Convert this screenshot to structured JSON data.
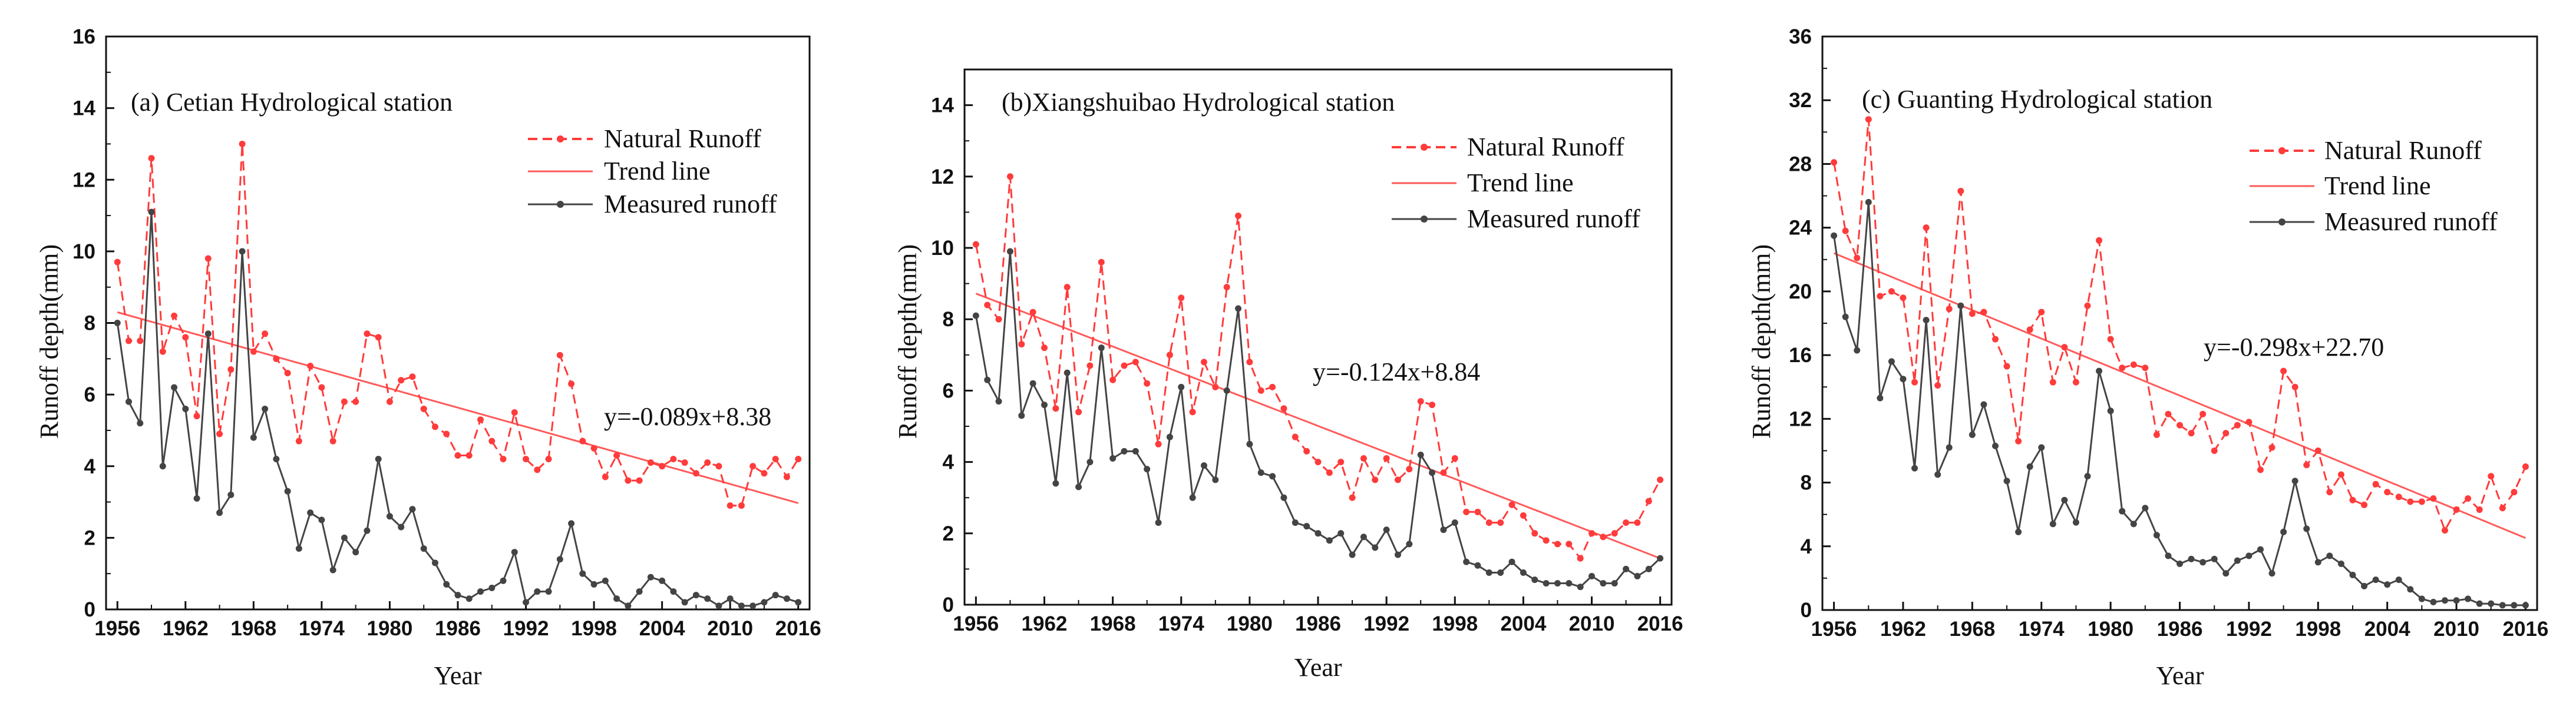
{
  "colors": {
    "natural": "#ff3b3b",
    "trend": "#ff5a5a",
    "measured": "#444444",
    "axis": "#111111"
  },
  "legend": {
    "natural": "Natural Runoff",
    "trend": "Trend line",
    "measured": "Measured runoff"
  },
  "chart_data": [
    {
      "type": "line",
      "title": "(a) Cetian Hydrological station",
      "xlabel": "Year",
      "ylabel": "Runoff depth(mm)",
      "xlim": [
        1955,
        2017
      ],
      "ylim": [
        0,
        16
      ],
      "xticks": [
        1956,
        1962,
        1968,
        1974,
        1980,
        1986,
        1992,
        1998,
        2004,
        2010,
        2016
      ],
      "xtick_labels": [
        "1956",
        "1962",
        "1968",
        "1974",
        "1980",
        "1986",
        "1992",
        "1998",
        "2004",
        "2010",
        "2016"
      ],
      "yticks": [
        0,
        2,
        4,
        6,
        8,
        10,
        12,
        14,
        16
      ],
      "ytick_labels": [
        "0",
        "2",
        "4",
        "6",
        "8",
        "10",
        "12",
        "14",
        "16"
      ],
      "equation": "y=-0.089x+8.38",
      "trend": {
        "x": [
          1956,
          2016
        ],
        "y": [
          8.3,
          2.97
        ]
      },
      "x": [
        1956,
        1957,
        1958,
        1959,
        1960,
        1961,
        1962,
        1963,
        1964,
        1965,
        1966,
        1967,
        1968,
        1969,
        1970,
        1971,
        1972,
        1973,
        1974,
        1975,
        1976,
        1977,
        1978,
        1979,
        1980,
        1981,
        1982,
        1983,
        1984,
        1985,
        1986,
        1987,
        1988,
        1989,
        1990,
        1991,
        1992,
        1993,
        1994,
        1995,
        1996,
        1997,
        1998,
        1999,
        2000,
        2001,
        2002,
        2003,
        2004,
        2005,
        2006,
        2007,
        2008,
        2009,
        2010,
        2011,
        2012,
        2013,
        2014,
        2015,
        2016
      ],
      "series": [
        {
          "name": "Natural Runoff",
          "values": [
            9.7,
            7.5,
            7.5,
            12.6,
            7.2,
            8.2,
            7.6,
            5.4,
            9.8,
            4.9,
            6.7,
            13.0,
            7.2,
            7.7,
            7.0,
            6.6,
            4.7,
            6.8,
            6.2,
            4.7,
            5.8,
            5.8,
            7.7,
            7.6,
            5.8,
            6.4,
            6.5,
            5.6,
            5.1,
            4.9,
            4.3,
            4.3,
            5.3,
            4.7,
            4.2,
            5.5,
            4.2,
            3.9,
            4.2,
            7.1,
            6.3,
            4.7,
            4.5,
            3.7,
            4.3,
            3.6,
            3.6,
            4.1,
            4.0,
            4.2,
            4.1,
            3.8,
            4.1,
            4.0,
            2.9,
            2.9,
            4.0,
            3.8,
            4.2,
            3.7,
            4.2
          ]
        },
        {
          "name": "Measured runoff",
          "values": [
            8.0,
            5.8,
            5.2,
            11.1,
            4.0,
            6.2,
            5.6,
            3.1,
            7.7,
            2.7,
            3.2,
            10.0,
            4.8,
            5.6,
            4.2,
            3.3,
            1.7,
            2.7,
            2.5,
            1.1,
            2.0,
            1.6,
            2.2,
            4.2,
            2.6,
            2.3,
            2.8,
            1.7,
            1.3,
            0.7,
            0.4,
            0.3,
            0.5,
            0.6,
            0.8,
            1.6,
            0.2,
            0.5,
            0.5,
            1.4,
            2.4,
            1.0,
            0.7,
            0.8,
            0.3,
            0.1,
            0.5,
            0.9,
            0.8,
            0.5,
            0.2,
            0.4,
            0.3,
            0.1,
            0.3,
            0.1,
            0.1,
            0.2,
            0.4,
            0.3,
            0.2
          ]
        }
      ]
    },
    {
      "type": "line",
      "title": "(b)Xiangshuibao Hydrological station",
      "xlabel": "Year",
      "ylabel": "Runoff depth(mm)",
      "xlim": [
        1955,
        2017
      ],
      "ylim": [
        0,
        15
      ],
      "xticks": [
        1956,
        1962,
        1968,
        1974,
        1980,
        1986,
        1992,
        1998,
        2004,
        2010,
        2016
      ],
      "xtick_labels": [
        "1956",
        "1962",
        "1968",
        "1974",
        "1980",
        "1986",
        "1992",
        "1998",
        "2004",
        "2010",
        "2016"
      ],
      "yticks": [
        0,
        2,
        4,
        6,
        8,
        10,
        12,
        14
      ],
      "ytick_labels": [
        "0",
        "2",
        "4",
        "6",
        "8",
        "10",
        "12",
        "14"
      ],
      "equation": "y=-0.124x+8.84",
      "trend": {
        "x": [
          1956,
          2016
        ],
        "y": [
          8.72,
          1.3
        ]
      },
      "x": [
        1956,
        1957,
        1958,
        1959,
        1960,
        1961,
        1962,
        1963,
        1964,
        1965,
        1966,
        1967,
        1968,
        1969,
        1970,
        1971,
        1972,
        1973,
        1974,
        1975,
        1976,
        1977,
        1978,
        1979,
        1980,
        1981,
        1982,
        1983,
        1984,
        1985,
        1986,
        1987,
        1988,
        1989,
        1990,
        1991,
        1992,
        1993,
        1994,
        1995,
        1996,
        1997,
        1998,
        1999,
        2000,
        2001,
        2002,
        2003,
        2004,
        2005,
        2006,
        2007,
        2008,
        2009,
        2010,
        2011,
        2012,
        2013,
        2014,
        2015,
        2016
      ],
      "series": [
        {
          "name": "Natural Runoff",
          "values": [
            10.1,
            8.4,
            8.0,
            12.0,
            7.3,
            8.2,
            7.2,
            5.5,
            8.9,
            5.4,
            6.7,
            9.6,
            6.3,
            6.7,
            6.8,
            6.2,
            4.5,
            7.0,
            8.6,
            5.4,
            6.8,
            6.1,
            8.9,
            10.9,
            6.8,
            6.0,
            6.1,
            5.5,
            4.7,
            4.3,
            4.0,
            3.7,
            4.0,
            3.0,
            4.1,
            3.5,
            4.1,
            3.5,
            3.8,
            5.7,
            5.6,
            3.7,
            4.1,
            2.6,
            2.6,
            2.3,
            2.3,
            2.8,
            2.5,
            2.0,
            1.8,
            1.7,
            1.7,
            1.3,
            2.0,
            1.9,
            2.0,
            2.3,
            2.3,
            2.9,
            3.5
          ]
        },
        {
          "name": "Measured runoff",
          "values": [
            8.1,
            6.3,
            5.7,
            9.9,
            5.3,
            6.2,
            5.6,
            3.4,
            6.5,
            3.3,
            4.0,
            7.2,
            4.1,
            4.3,
            4.3,
            3.8,
            2.3,
            4.7,
            6.1,
            3.0,
            3.9,
            3.5,
            6.0,
            8.3,
            4.5,
            3.7,
            3.6,
            3.0,
            2.3,
            2.2,
            2.0,
            1.8,
            2.0,
            1.4,
            1.9,
            1.6,
            2.1,
            1.4,
            1.7,
            4.2,
            3.7,
            2.1,
            2.3,
            1.2,
            1.1,
            0.9,
            0.9,
            1.2,
            0.9,
            0.7,
            0.6,
            0.6,
            0.6,
            0.5,
            0.8,
            0.6,
            0.6,
            1.0,
            0.8,
            1.0,
            1.3
          ]
        }
      ]
    },
    {
      "type": "line",
      "title": "(c) Guanting Hydrological station",
      "xlabel": "Year",
      "ylabel": "Runoff depth(mm)",
      "xlim": [
        1955,
        2017
      ],
      "ylim": [
        0,
        36
      ],
      "xticks": [
        1956,
        1962,
        1968,
        1974,
        1980,
        1986,
        1992,
        1998,
        2004,
        2010,
        2016
      ],
      "xtick_labels": [
        "1956",
        "1962",
        "1968",
        "1974",
        "1980",
        "1986",
        "1992",
        "1998",
        "2004",
        "2010",
        "2016"
      ],
      "yticks": [
        0,
        4,
        8,
        12,
        16,
        20,
        24,
        28,
        32,
        36
      ],
      "ytick_labels": [
        "0",
        "4",
        "8",
        "12",
        "16",
        "20",
        "24",
        "28",
        "32",
        "36"
      ],
      "equation": "y=-0.298x+22.70",
      "trend": {
        "x": [
          1956,
          2016
        ],
        "y": [
          22.4,
          4.52
        ]
      },
      "x": [
        1956,
        1957,
        1958,
        1959,
        1960,
        1961,
        1962,
        1963,
        1964,
        1965,
        1966,
        1967,
        1968,
        1969,
        1970,
        1971,
        1972,
        1973,
        1974,
        1975,
        1976,
        1977,
        1978,
        1979,
        1980,
        1981,
        1982,
        1983,
        1984,
        1985,
        1986,
        1987,
        1988,
        1989,
        1990,
        1991,
        1992,
        1993,
        1994,
        1995,
        1996,
        1997,
        1998,
        1999,
        2000,
        2001,
        2002,
        2003,
        2004,
        2005,
        2006,
        2007,
        2008,
        2009,
        2010,
        2011,
        2012,
        2013,
        2014,
        2015,
        2016
      ],
      "series": [
        {
          "name": "Natural Runoff",
          "values": [
            28.1,
            23.8,
            22.1,
            30.8,
            19.7,
            20.0,
            19.6,
            14.3,
            24.0,
            14.1,
            18.9,
            26.3,
            18.6,
            18.7,
            17.0,
            15.3,
            10.6,
            17.6,
            18.7,
            14.3,
            16.5,
            14.3,
            19.1,
            23.2,
            17.0,
            15.2,
            15.4,
            15.2,
            11.0,
            12.3,
            11.6,
            11.1,
            12.3,
            10.0,
            11.1,
            11.6,
            11.8,
            8.8,
            10.2,
            15.0,
            14.0,
            9.1,
            10.0,
            7.4,
            8.5,
            6.9,
            6.6,
            7.9,
            7.4,
            7.1,
            6.8,
            6.8,
            7.0,
            5.0,
            6.3,
            7.0,
            6.3,
            8.4,
            6.4,
            7.4,
            9.0
          ]
        },
        {
          "name": "Measured runoff",
          "values": [
            23.5,
            18.4,
            16.3,
            25.6,
            13.3,
            15.6,
            14.5,
            8.9,
            18.2,
            8.5,
            10.2,
            19.1,
            11.0,
            12.9,
            10.3,
            8.1,
            4.9,
            9.0,
            10.2,
            5.4,
            6.9,
            5.5,
            8.4,
            15.0,
            12.5,
            6.2,
            5.4,
            6.4,
            4.7,
            3.4,
            2.9,
            3.2,
            3.0,
            3.2,
            2.3,
            3.1,
            3.4,
            3.8,
            2.3,
            4.9,
            8.1,
            5.1,
            3.0,
            3.4,
            2.9,
            2.2,
            1.5,
            1.9,
            1.6,
            1.9,
            1.3,
            0.7,
            0.5,
            0.6,
            0.6,
            0.7,
            0.4,
            0.4,
            0.3,
            0.3,
            0.3
          ]
        }
      ]
    }
  ]
}
